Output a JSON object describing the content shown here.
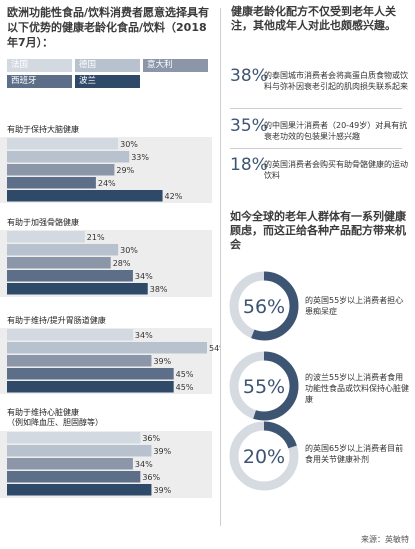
{
  "left_title": "欧洲功能性食品/饮料消费者愿意选择具有以下优势的健康老龄化食品/饮料（2018年7月）：",
  "legend": [
    {
      "label": "法国",
      "color": "#d3d9e1"
    },
    {
      "label": "德国",
      "color": "#b8c2cf"
    },
    {
      "label": "意大利",
      "color": "#8b97a9"
    },
    {
      "label": "西班牙",
      "color": "#5d6f88"
    },
    {
      "label": "波兰",
      "color": "#2f4968"
    }
  ],
  "chart_data": {
    "type": "bar",
    "orientation": "horizontal",
    "value_suffix": "%",
    "series": [
      "法国",
      "德国",
      "意大利",
      "西班牙",
      "波兰"
    ],
    "groups": [
      {
        "label": "有助于保持大脑健康",
        "values": [
          30,
          33,
          29,
          24,
          42
        ]
      },
      {
        "label": "有助于加强骨骼健康",
        "values": [
          21,
          30,
          28,
          34,
          38
        ]
      },
      {
        "label": "有助于维持/提升胃肠道健康",
        "values": [
          34,
          54,
          39,
          45,
          45
        ]
      },
      {
        "label": "有助于维持心脏健康\n（例如降血压、胆固醇等）",
        "values": [
          36,
          39,
          34,
          36,
          39
        ]
      }
    ],
    "max": 54
  },
  "right_title": "健康老龄化配方不仅受到老年人关注，其他成年人对此也颇感兴趣。",
  "stats": [
    {
      "value": "38%",
      "text": "的泰国城市消费者会将高蛋白质食物或饮料与弥补因衰老引起的肌肉损失联系起来"
    },
    {
      "value": "35%",
      "text": "的中国果汁消费者（20-49岁）对具有抗衰老功效的包装果汁感兴趣"
    },
    {
      "value": "18%",
      "text": "的英国消费者会购买有助骨骼健康的运动饮料"
    }
  ],
  "right_title2": "如今全球的老年人群体有一系列健康顾虑，而这正给各种产品配方带来机会",
  "rings": [
    {
      "value": "56%",
      "fraction": 0.56,
      "text": "的英国55岁以上消费者担心患痴呆症"
    },
    {
      "value": "55%",
      "fraction": 0.55,
      "text": "的波兰55岁以上消费者食用功能性食品或饮料保持心脏健康"
    },
    {
      "value": "20%",
      "fraction": 0.2,
      "text": "的英国65岁以上消费者目前食用关节健康补剂"
    }
  ],
  "source": "来源：英敏特"
}
